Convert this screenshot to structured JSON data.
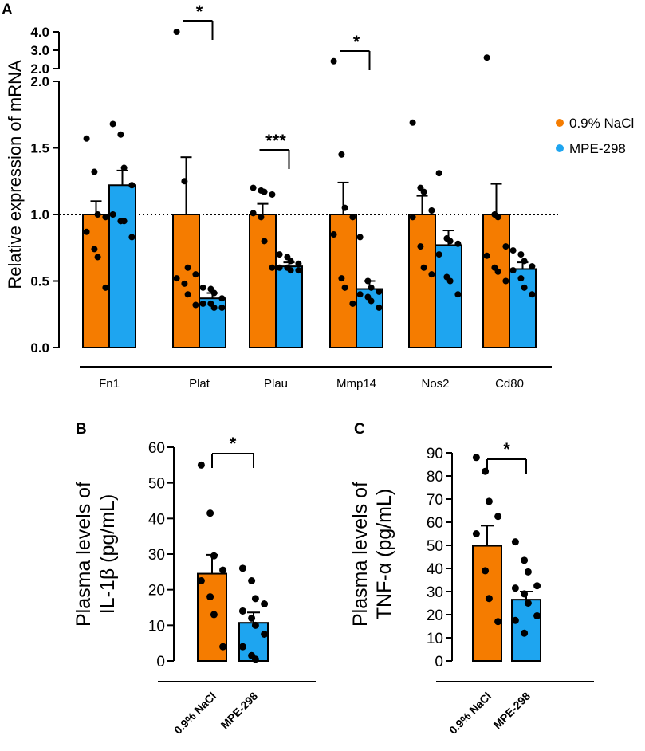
{
  "colors": {
    "nacl": "#f57c00",
    "mpe": "#1ea5f0",
    "edge": "#000000"
  },
  "legend": {
    "items": [
      {
        "label": "0.9% NaCl",
        "color": "#f57c00"
      },
      {
        "label": "MPE-298",
        "color": "#1ea5f0"
      }
    ]
  },
  "chart_data": [
    {
      "panel": "A",
      "type": "bar",
      "ylabel": "Relative expression of mRNA",
      "reference_line": 1.0,
      "y_axis_break": {
        "lower_range": [
          0,
          2.0
        ],
        "upper_range": [
          2.0,
          4.0
        ]
      },
      "yticks_lower": [
        "0.0",
        "0.5",
        "1.0",
        "1.5",
        "2.0"
      ],
      "yticks_upper": [
        "2.0",
        "3.0",
        "4.0"
      ],
      "categories": [
        "Fn1",
        "Plat",
        "Plau",
        "Mmp14",
        "Nos2",
        "Cd80"
      ],
      "series": [
        {
          "name": "0.9% NaCl",
          "values": [
            1.0,
            1.0,
            1.0,
            1.0,
            1.0,
            1.0
          ],
          "sem": [
            0.1,
            0.43,
            0.08,
            0.24,
            0.14,
            0.23
          ],
          "points": [
            [
              1.57,
              1.32,
              1.0,
              0.98,
              0.87,
              0.74,
              0.68,
              0.45
            ],
            [
              4.0,
              1.25,
              0.6,
              0.55,
              0.52,
              0.48,
              0.4,
              0.32
            ],
            [
              1.2,
              1.18,
              1.17,
              1.15,
              1.01,
              0.98,
              0.8,
              0.6
            ],
            [
              2.4,
              1.45,
              1.05,
              0.98,
              0.85,
              0.52,
              0.45,
              0.33
            ],
            [
              1.69,
              1.2,
              1.17,
              1.03,
              0.98,
              0.76,
              0.6,
              0.55
            ],
            [
              2.6,
              1.0,
              0.98,
              0.76,
              0.69,
              0.6,
              0.57,
              0.5
            ]
          ]
        },
        {
          "name": "MPE-298",
          "values": [
            1.22,
            0.37,
            0.61,
            0.44,
            0.77,
            0.59
          ],
          "sem": [
            0.11,
            0.04,
            0.03,
            0.06,
            0.11,
            0.05
          ],
          "points": [
            [
              1.68,
              1.6,
              1.35,
              1.22,
              1.0,
              0.95,
              0.95,
              0.83
            ],
            [
              0.45,
              0.44,
              0.41,
              0.37,
              0.33,
              0.33,
              0.3,
              0.3
            ],
            [
              0.7,
              0.68,
              0.65,
              0.63,
              0.6,
              0.6,
              0.58,
              0.58
            ],
            [
              0.83,
              0.5,
              0.45,
              0.42,
              0.4,
              0.38,
              0.35,
              0.3
            ],
            [
              1.31,
              0.82,
              0.8,
              0.78,
              0.7,
              0.53,
              0.5,
              0.4
            ],
            [
              0.73,
              0.7,
              0.65,
              0.61,
              0.58,
              0.52,
              0.45,
              0.4
            ]
          ]
        }
      ],
      "significance": [
        {
          "category": "Plat",
          "label": "*"
        },
        {
          "category": "Plau",
          "label": "***"
        },
        {
          "category": "Mmp14",
          "label": "*"
        }
      ]
    },
    {
      "panel": "B",
      "type": "bar",
      "ylabel_line1": "Plasma levels of",
      "ylabel_line2": "IL-1β  (pg/mL)",
      "ylim": [
        0,
        60
      ],
      "yticks": [
        "0",
        "10",
        "20",
        "30",
        "40",
        "50",
        "60"
      ],
      "categories": [
        "0.9% NaCl",
        "MPE-298"
      ],
      "values": [
        24.5,
        10.7
      ],
      "sem": [
        5.3,
        2.9
      ],
      "points": [
        [
          55,
          41.5,
          29.5,
          25.5,
          22.5,
          18,
          13,
          4
        ],
        [
          26,
          22.5,
          17.5,
          16,
          14,
          12,
          10,
          7.5,
          4,
          1.5,
          0.5
        ]
      ],
      "significance": "*"
    },
    {
      "panel": "C",
      "type": "bar",
      "ylabel_line1": "Plasma levels of",
      "ylabel_line2": "TNF-α  (pg/mL)",
      "ylim": [
        0,
        90
      ],
      "yticks": [
        "0",
        "10",
        "20",
        "30",
        "40",
        "50",
        "60",
        "70",
        "80",
        "90"
      ],
      "categories": [
        "0.9% NaCl",
        "MPE-298"
      ],
      "values": [
        49.8,
        26.5
      ],
      "sem": [
        8.7,
        3.5
      ],
      "points": [
        [
          88,
          82,
          69,
          62.5,
          55,
          39,
          27,
          17
        ],
        [
          51.5,
          43.5,
          38.5,
          32.5,
          31.5,
          29,
          25,
          19.5,
          17.5,
          12
        ]
      ],
      "significance": "*"
    }
  ]
}
